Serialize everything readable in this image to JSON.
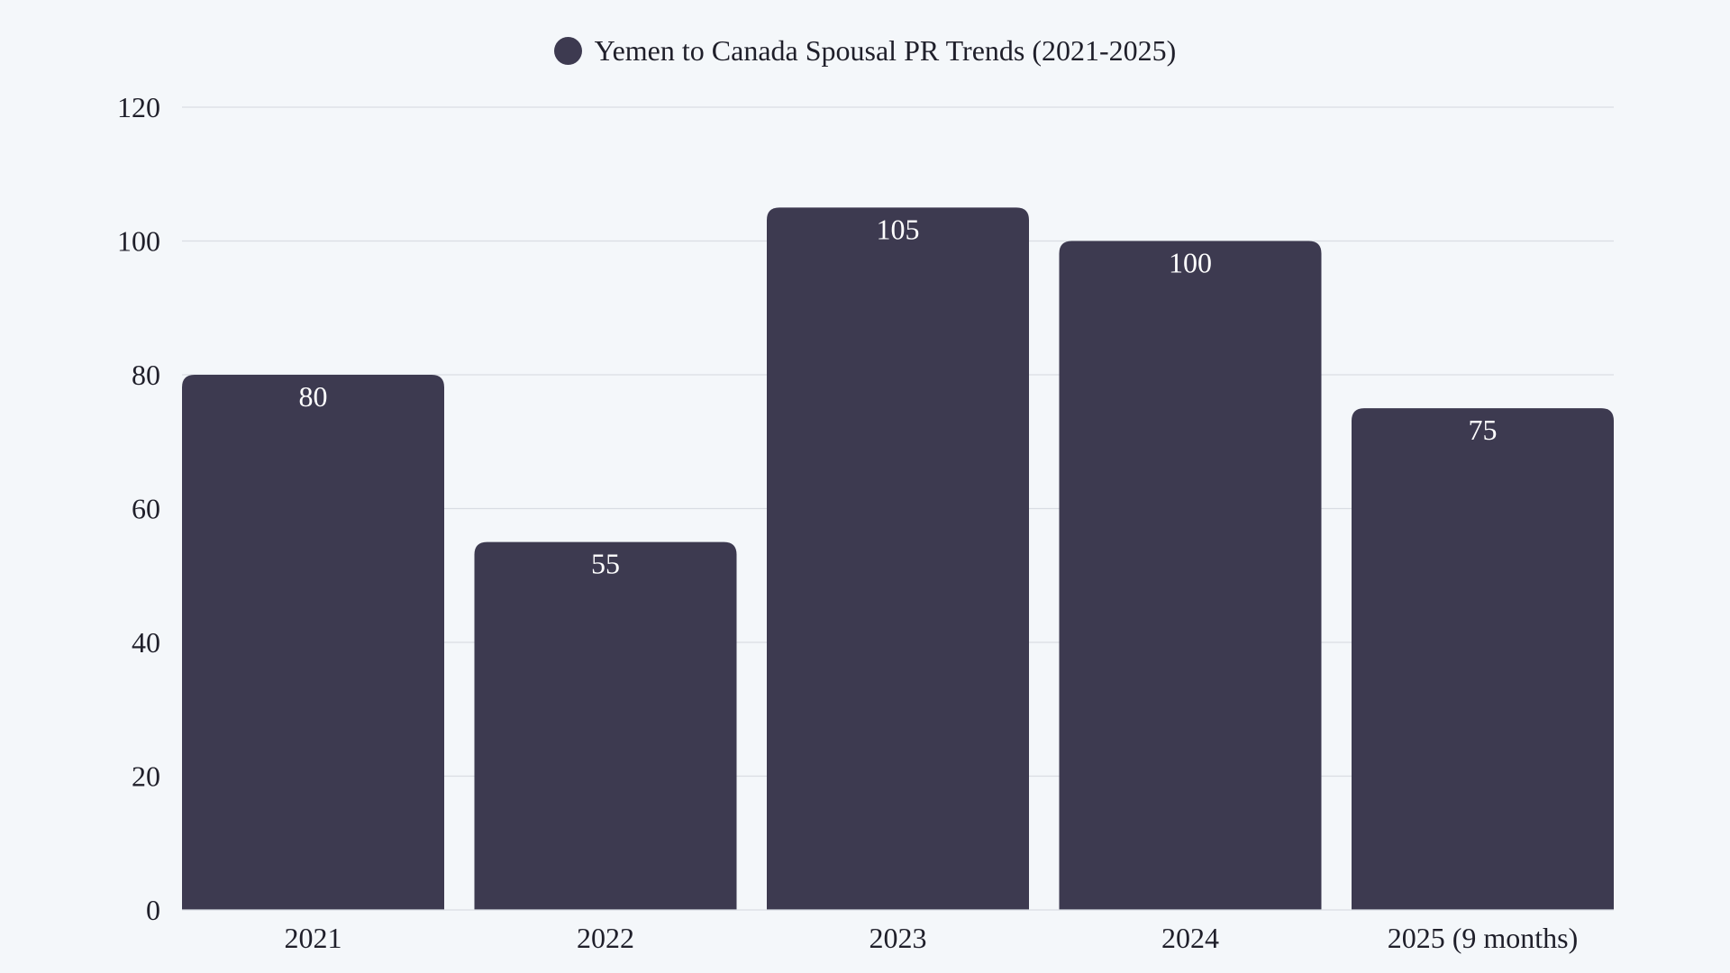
{
  "chart_data": {
    "type": "bar",
    "title": "",
    "categories": [
      "2021",
      "2022",
      "2023",
      "2024",
      "2025 (9 months)"
    ],
    "series": [
      {
        "name": "Yemen to Canada Spousal PR Trends (2021-2025)",
        "values": [
          80,
          55,
          105,
          100,
          75
        ],
        "color": "#3d3a50"
      }
    ],
    "data_labels": [
      "80",
      "55",
      "105",
      "100",
      "75"
    ],
    "yticks": [
      "0",
      "20",
      "40",
      "60",
      "80",
      "100",
      "120"
    ],
    "ylim": [
      0,
      120
    ],
    "xlabel": "",
    "ylabel": "",
    "grid": true,
    "legend": "top-center"
  },
  "colors": {
    "background": "#f4f7fa",
    "bar": "#3d3a50",
    "grid": "#d9dde3",
    "label_inside": "#ffffff"
  }
}
